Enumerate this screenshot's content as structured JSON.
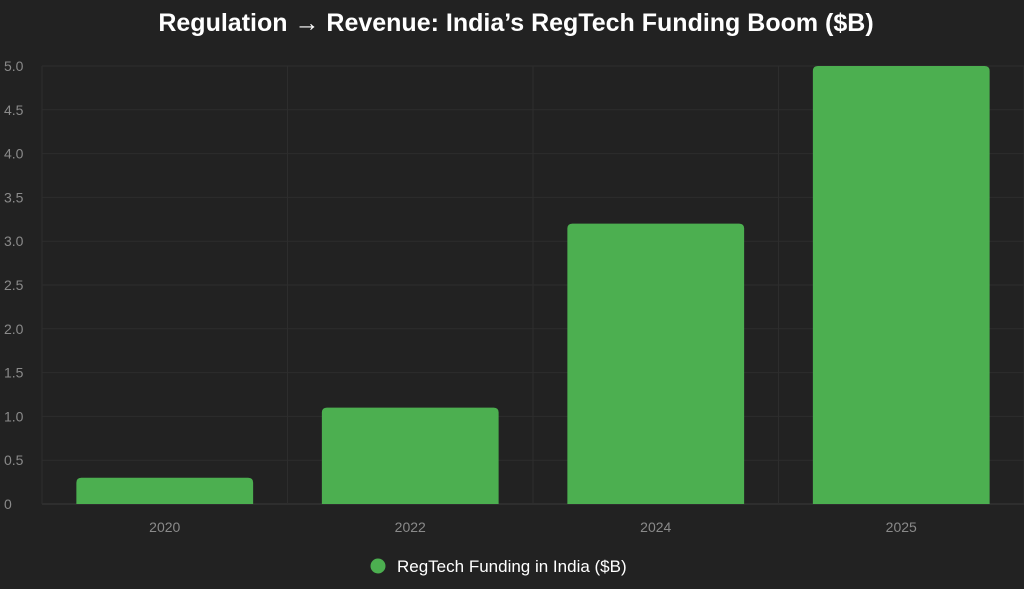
{
  "chart_data": {
    "type": "bar",
    "title": "Regulation → Revenue: India’s RegTech Funding Boom ($B)",
    "categories": [
      "2020",
      "2022",
      "2024",
      "2025"
    ],
    "series": [
      {
        "name": "RegTech Funding in India ($B)",
        "values": [
          0.3,
          1.1,
          3.2,
          5.0
        ],
        "color": "#4caf50"
      }
    ],
    "ylim": [
      0,
      5.0
    ],
    "yticks": [
      "0",
      "0.5",
      "1.0",
      "1.5",
      "2.0",
      "2.5",
      "3.0",
      "3.5",
      "4.0",
      "4.5",
      "5.0"
    ],
    "xlabel": "",
    "ylabel": "",
    "grid": true,
    "legend_position": "bottom-center"
  }
}
